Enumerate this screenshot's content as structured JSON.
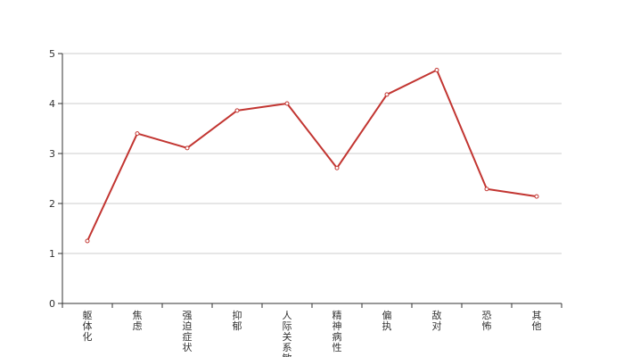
{
  "chart_data": {
    "type": "line",
    "title": "",
    "xlabel": "",
    "ylabel": "",
    "categories": [
      "躯体化",
      "焦虑",
      "强迫症状",
      "抑郁",
      "人际关系敏感",
      "精神病性",
      "偏执",
      "敌对",
      "恐怖",
      "其他"
    ],
    "values": [
      1.25,
      3.4,
      3.11,
      3.86,
      4.0,
      2.71,
      4.18,
      4.67,
      2.29,
      2.14
    ],
    "ylim": [
      0,
      5
    ],
    "yticks": [
      "0",
      "1",
      "2",
      "3",
      "4",
      "5"
    ],
    "grid": true,
    "legend": "none",
    "line_color": "#c23531"
  }
}
